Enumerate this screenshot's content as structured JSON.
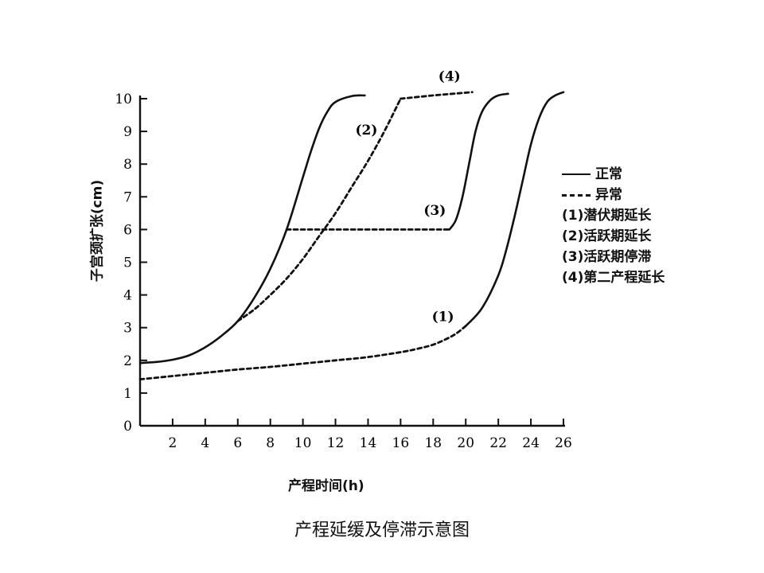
{
  "caption": "产程延缓及停滞示意图",
  "chart_data": {
    "type": "line",
    "title": "",
    "xlabel": "产程时间(h)",
    "ylabel": "子宫颈扩张(cm)",
    "xlim": [
      0,
      26
    ],
    "ylim": [
      0,
      10
    ],
    "xticks": [
      2,
      4,
      6,
      8,
      10,
      12,
      14,
      16,
      18,
      20,
      22,
      24,
      26
    ],
    "yticks": [
      0,
      1,
      2,
      3,
      4,
      5,
      6,
      7,
      8,
      9,
      10
    ],
    "grid": false,
    "legend_position": "right",
    "legend": [
      {
        "text": "正常",
        "style": "solid"
      },
      {
        "text": "异常",
        "style": "dashed"
      },
      {
        "text": "(1)潜伏期延长"
      },
      {
        "text": "(2)活跃期延长"
      },
      {
        "text": "(3)活跃期停滞"
      },
      {
        "text": "(4)第二产程延长"
      }
    ],
    "series": [
      {
        "style": "solid",
        "x": [
          0,
          1,
          2,
          3,
          4,
          5,
          6,
          7,
          8,
          9,
          10,
          10.5,
          11,
          11.5,
          12,
          13,
          13.8
        ],
        "y": [
          1.92,
          1.95,
          2.02,
          2.15,
          2.4,
          2.75,
          3.2,
          3.9,
          4.8,
          6.0,
          7.6,
          8.4,
          9.1,
          9.6,
          9.9,
          10.08,
          10.1
        ]
      },
      {
        "style": "dashed",
        "x": [
          6,
          7,
          8,
          9,
          10,
          11,
          12,
          13,
          14,
          15,
          16
        ],
        "y": [
          3.2,
          3.55,
          4.0,
          4.5,
          5.1,
          5.8,
          6.5,
          7.3,
          8.1,
          9.0,
          10.0
        ]
      },
      {
        "style": "dashed",
        "x": [
          16,
          18,
          20.4
        ],
        "y": [
          10.0,
          10.1,
          10.2
        ]
      },
      {
        "style": "dashed",
        "x": [
          9,
          12,
          15,
          18,
          19
        ],
        "y": [
          6.0,
          6.0,
          6.0,
          6.0,
          6.0
        ]
      },
      {
        "style": "solid",
        "x": [
          19,
          19.4,
          19.8,
          20.2,
          20.6,
          21,
          21.5,
          22,
          22.6
        ],
        "y": [
          6.0,
          6.3,
          7.0,
          8.0,
          9.0,
          9.6,
          9.95,
          10.1,
          10.15
        ]
      },
      {
        "style": "dashed",
        "x": [
          0,
          2,
          4,
          6,
          8,
          10,
          12,
          14,
          16,
          17,
          18,
          19,
          19.5,
          20
        ],
        "y": [
          1.42,
          1.52,
          1.62,
          1.72,
          1.8,
          1.9,
          2.0,
          2.1,
          2.25,
          2.35,
          2.48,
          2.7,
          2.85,
          3.05
        ]
      },
      {
        "style": "solid",
        "x": [
          20,
          21,
          22,
          22.5,
          23,
          23.5,
          24,
          24.5,
          25,
          25.5,
          26
        ],
        "y": [
          3.05,
          3.6,
          4.6,
          5.4,
          6.4,
          7.5,
          8.6,
          9.4,
          9.9,
          10.1,
          10.2
        ]
      }
    ],
    "annotations": [
      {
        "text": "(4)",
        "x": 19,
        "y": 10.55
      },
      {
        "text": "(2)",
        "x": 13.9,
        "y": 8.9
      },
      {
        "text": "(3)",
        "x": 18.1,
        "y": 6.45
      },
      {
        "text": "(1)",
        "x": 18.6,
        "y": 3.2
      }
    ]
  }
}
